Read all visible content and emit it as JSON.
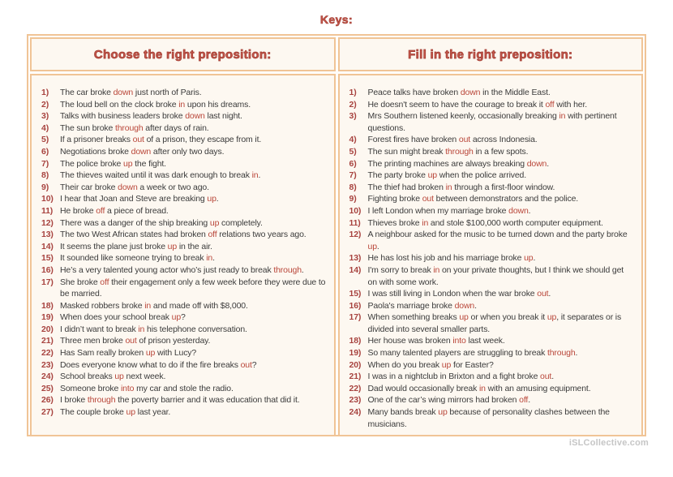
{
  "page": {
    "title": "Keys:",
    "watermark": "iSLCollective.com"
  },
  "colors": {
    "border_peach": "#f0c496",
    "cell_background": "#fdf8f1",
    "header_red": "#c4574b",
    "number_red": "#a84440",
    "answer_red": "#b9473a",
    "body_text": "#3c3c3c",
    "watermark_gray": "#c6c6c6"
  },
  "columns": [
    {
      "header": "Choose the right preposition:",
      "items": [
        "The car broke {down} just north of Paris.",
        "The loud bell on the clock broke {in} upon his dreams.",
        "Talks with business leaders broke {down} last night.",
        "The sun broke {through} after days of rain.",
        "If a prisoner breaks {out} of a prison, they escape from it.",
        "Negotiations broke {down} after only two days.",
        "The police broke {up} the fight.",
        "The thieves waited until it was dark enough to break {in}.",
        "Their car broke {down} a week or two ago.",
        "I hear that Joan and Steve are breaking {up}.",
        "He broke {off} a piece of bread.",
        "There was a danger of the ship breaking {up} completely.",
        "The two West African states had broken {off} relations two years ago.",
        "It seems the plane just broke {up} in the air.",
        "It sounded like someone trying to break {in}.",
        "He’s a very talented young actor who’s just ready to break {through}.",
        "She broke {off} their engagement only a few week before they were due to be married.",
        "Masked robbers broke {in} and made off with $8,000.",
        "When does your school break {up}?",
        "I didn’t want to break {in} his telephone conversation.",
        "Three men broke {out} of prison yesterday.",
        "Has Sam really broken {up} with Lucy?",
        "Does everyone know what to do if the fire breaks {out}?",
        "School breaks {up} next week.",
        "Someone broke {into} my car and stole the radio.",
        "I broke {through} the poverty barrier and it was education that did it.",
        "The couple broke {up} last year."
      ]
    },
    {
      "header": "Fill in the right preposition:",
      "items": [
        "Peace talks have broken {down} in the Middle East.",
        "He doesn't seem to have the courage to break it {off} with her.",
        "Mrs Southern listened keenly, occasionally breaking {in} with pertinent questions.",
        "Forest fires have broken {out} across Indonesia.",
        "The sun might break {through} in a few spots.",
        "The printing machines are always breaking {down}.",
        "The party broke {up} when the police arrived.",
        "The thief had broken {in} through a first-floor window.",
        "Fighting broke {out} between demonstrators and the police.",
        "I left London when my marriage broke {down}.",
        "Thieves broke {in} and stole $100,000 worth computer equipment.",
        "A neighbour asked for the music to be turned down and the party broke {up}.",
        "He has lost his job and his marriage broke {up}.",
        "I'm sorry to break {in} on your private thoughts, but I think we should get on with some work.",
        "I was still living in London when the war broke {out}.",
        "Paola's marriage broke {down}.",
        "When something breaks {up} or when you break it {up}, it separates or is divided into several smaller parts.",
        "Her house was broken {into} last week.",
        "So many talented players are struggling to break {through}.",
        "When do you break {up} for Easter?",
        "I was in a nightclub in Brixton and a fight broke {out}.",
        "Dad would occasionally break {in} with an amusing equipment.",
        "One of the car’s wing mirrors had broken {off}.",
        "Many bands break {up} because of personality clashes between the musicians."
      ]
    }
  ]
}
